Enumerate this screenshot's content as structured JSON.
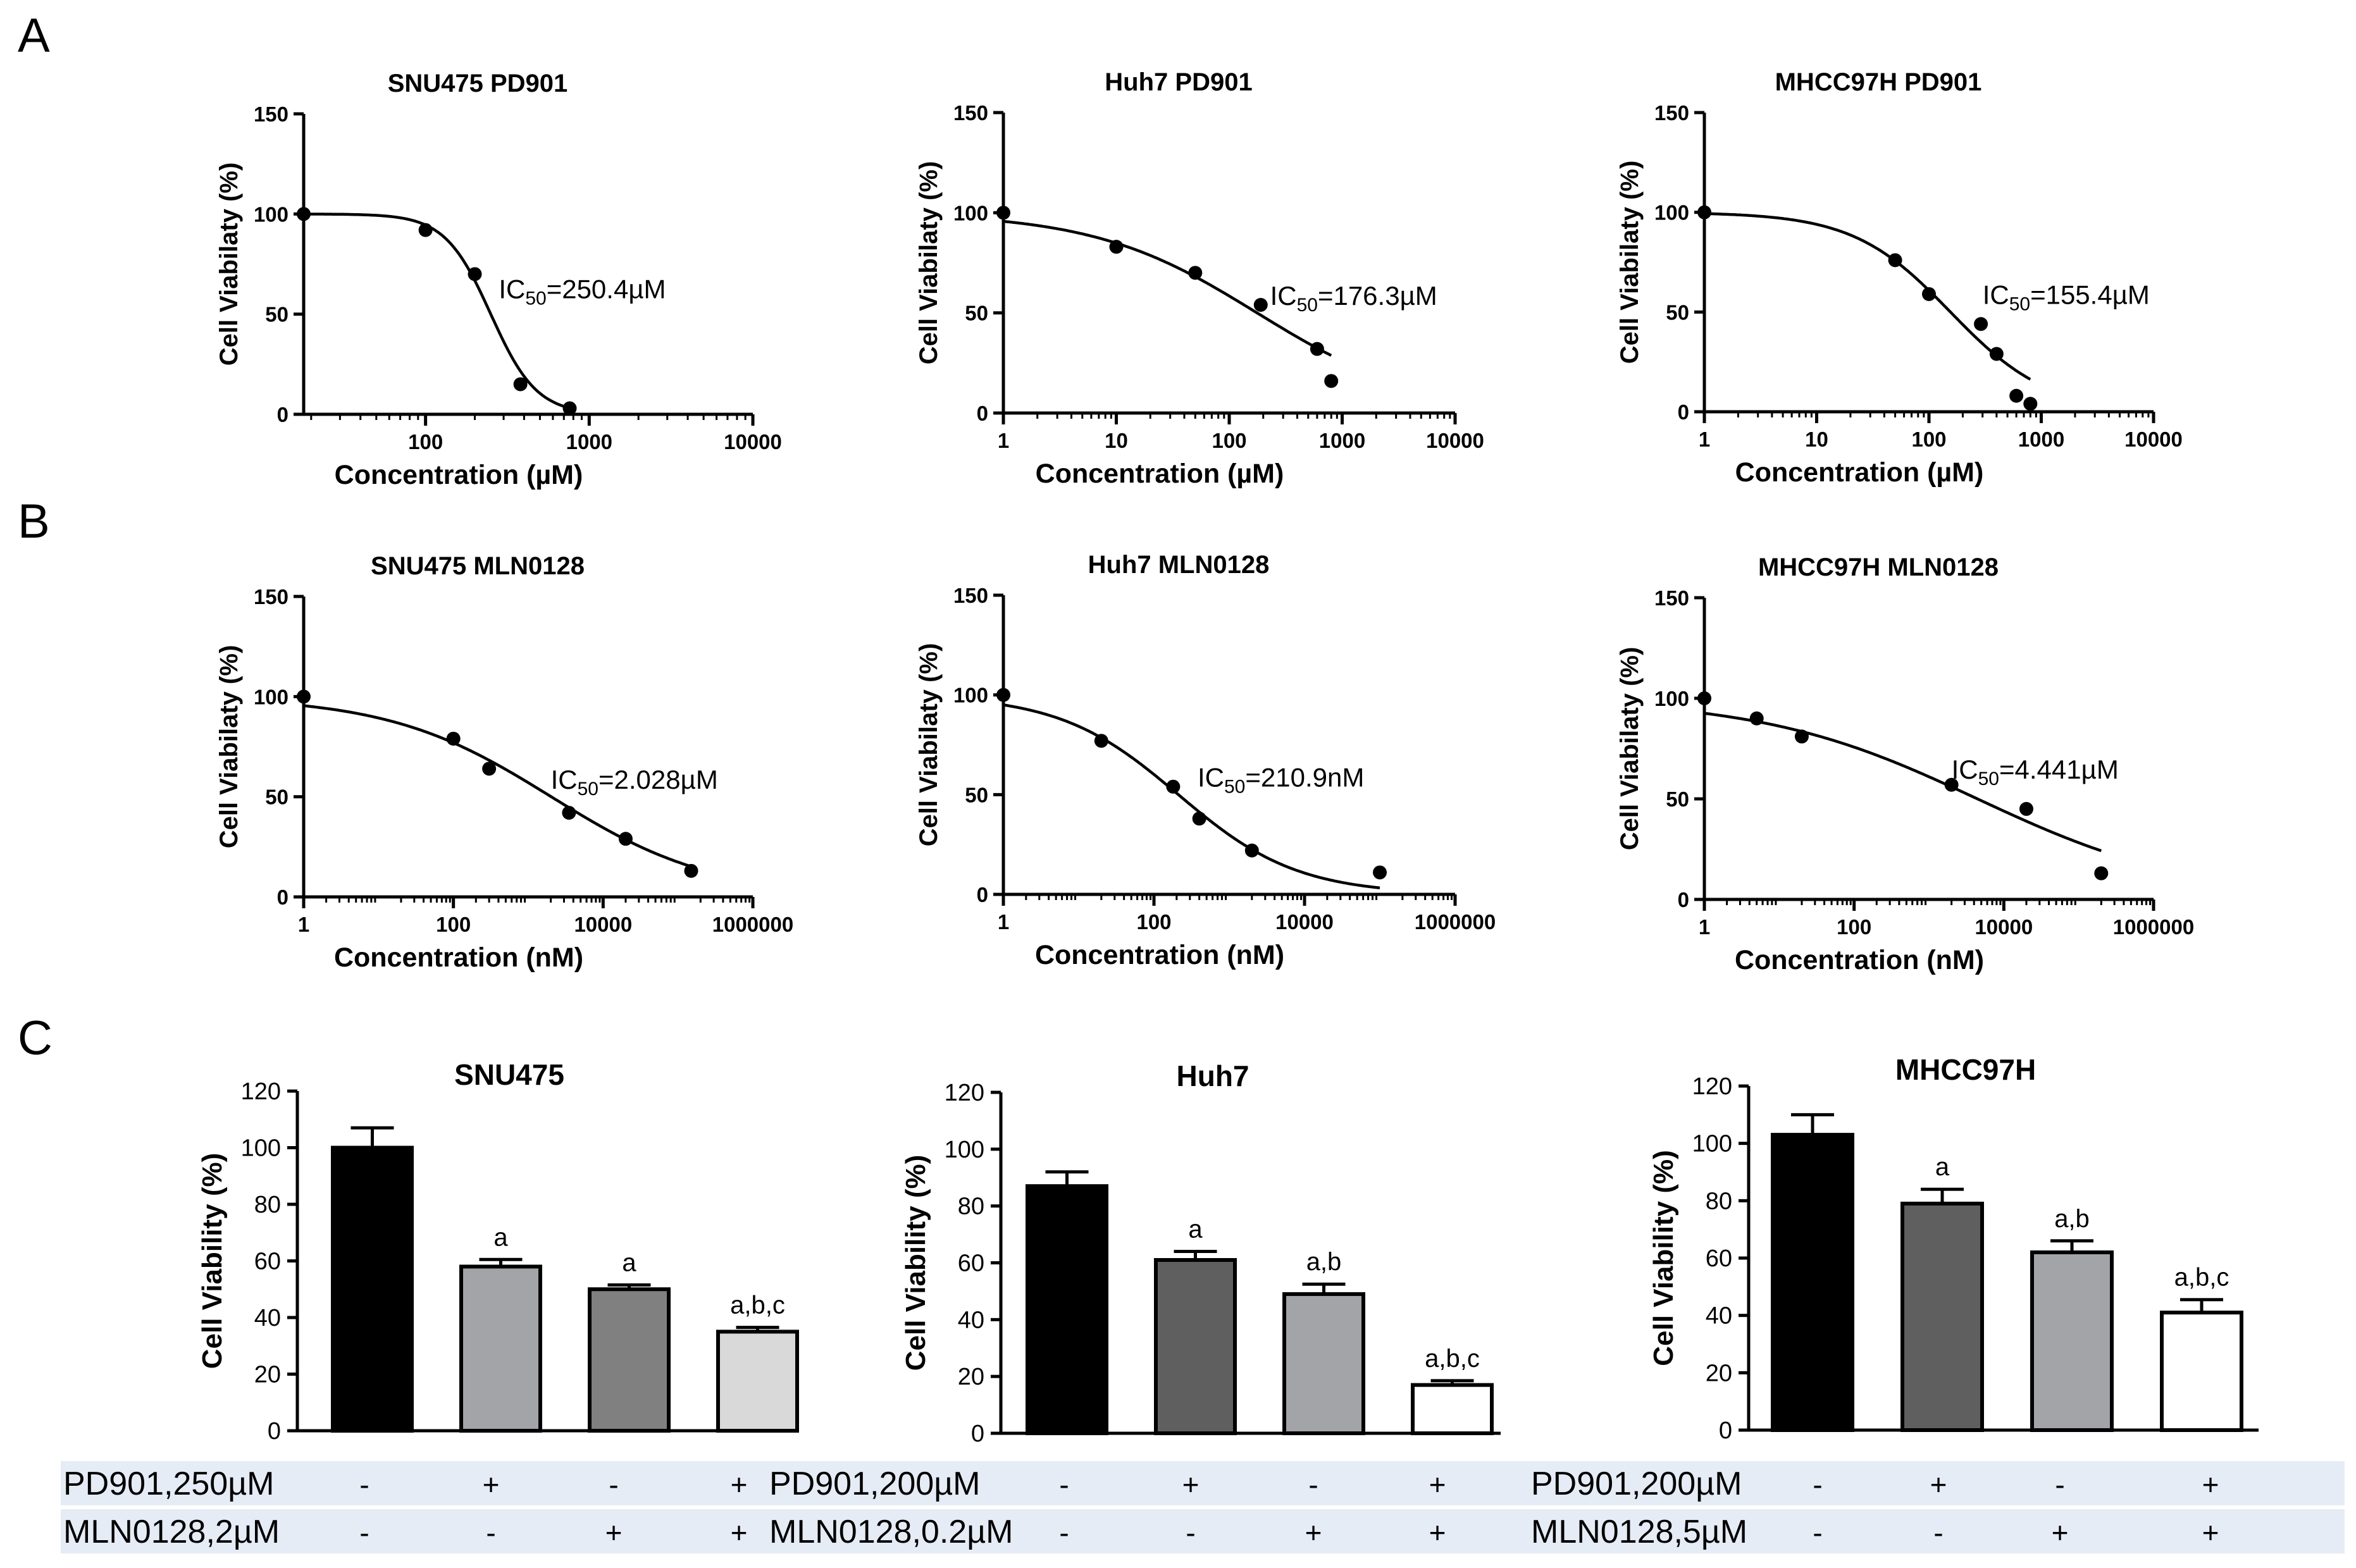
{
  "panels": {
    "A": "A",
    "B": "B",
    "C": "C"
  },
  "chart_data": [
    {
      "id": "a1",
      "type": "scatter",
      "title": "SNU475  PD901",
      "xlabel": "Concentration (µM)",
      "ylabel": "Cell Viabilaty (%)",
      "xscale": "log",
      "xlim": [
        18,
        10000
      ],
      "ylim": [
        0,
        150
      ],
      "yticks": [
        0,
        50,
        100,
        150
      ],
      "xticks": [
        100,
        1000,
        10000
      ],
      "xtick_labels": [
        "100",
        "1000",
        "10000"
      ],
      "ic50": {
        "prefix": "IC",
        "sub": "50",
        "value": "=250.4µM",
        "x": 280,
        "y": 58
      },
      "points": [
        [
          18,
          100
        ],
        [
          100,
          92
        ],
        [
          200,
          70
        ],
        [
          380,
          15
        ],
        [
          760,
          3
        ]
      ],
      "curve": {
        "top": 100,
        "bottom": 0,
        "ic50": 250.4,
        "hill": 3.1
      }
    },
    {
      "id": "a2",
      "type": "scatter",
      "title": "Huh7 PD901",
      "xlabel": "Concentration (µM)",
      "ylabel": "Cell Viabilaty (%)",
      "xscale": "log",
      "xlim": [
        1,
        10000
      ],
      "ylim": [
        0,
        150
      ],
      "yticks": [
        0,
        50,
        100,
        150
      ],
      "xticks": [
        1,
        10,
        100,
        1000,
        10000
      ],
      "xtick_labels": [
        "1",
        "10",
        "100",
        "1000",
        "10000"
      ],
      "ic50": {
        "prefix": "IC",
        "sub": "50",
        "value": "=176.3µM",
        "x": 230,
        "y": 54
      },
      "points": [
        [
          1,
          100
        ],
        [
          10,
          83
        ],
        [
          50,
          70
        ],
        [
          190,
          54
        ],
        [
          600,
          32
        ],
        [
          800,
          16
        ]
      ],
      "curve": {
        "top": 100,
        "bottom": 0,
        "ic50": 176.3,
        "hill": 0.6
      }
    },
    {
      "id": "a3",
      "type": "scatter",
      "title": "MHCC97H  PD901",
      "xlabel": "Concentration (µM)",
      "ylabel": "Cell Viabilaty (%)",
      "xscale": "log",
      "xlim": [
        1,
        10000
      ],
      "ylim": [
        0,
        150
      ],
      "yticks": [
        0,
        50,
        100,
        150
      ],
      "xticks": [
        1,
        10,
        100,
        1000,
        10000
      ],
      "xtick_labels": [
        "1",
        "10",
        "100",
        "1000",
        "10000"
      ],
      "ic50": {
        "prefix": "IC",
        "sub": "50",
        "value": "=155.4µM",
        "x": 300,
        "y": 54
      },
      "points": [
        [
          1,
          100
        ],
        [
          50,
          76
        ],
        [
          100,
          59
        ],
        [
          290,
          44
        ],
        [
          400,
          29
        ],
        [
          600,
          8
        ],
        [
          800,
          4
        ]
      ],
      "curve": {
        "top": 100,
        "bottom": 0,
        "ic50": 155.4,
        "hill": 1.0
      }
    },
    {
      "id": "b1",
      "type": "scatter",
      "title": "SNU475 MLN0128",
      "xlabel": "Concentration (nM)",
      "ylabel": "Cell Viabilaty (%)",
      "xscale": "log",
      "xlim": [
        1,
        1000000
      ],
      "ylim": [
        0,
        150
      ],
      "yticks": [
        0,
        50,
        100,
        150
      ],
      "xticks": [
        1,
        100,
        10000,
        1000000
      ],
      "xtick_labels": [
        "1",
        "100",
        "10000",
        "1000000"
      ],
      "ic50": {
        "prefix": "IC",
        "sub": "50",
        "value": "=2.028µM",
        "x": 2000,
        "y": 54
      },
      "points": [
        [
          1,
          100
        ],
        [
          100,
          79
        ],
        [
          300,
          64
        ],
        [
          3500,
          42
        ],
        [
          20000,
          29
        ],
        [
          150000,
          13
        ]
      ],
      "curve": {
        "top": 100,
        "bottom": 0,
        "ic50": 2028,
        "hill": 0.4
      }
    },
    {
      "id": "b2",
      "type": "scatter",
      "title": "Huh7 MLN0128",
      "xlabel": "Concentration (nM)",
      "ylabel": "Cell Viabilaty (%)",
      "xscale": "log",
      "xlim": [
        1,
        1000000
      ],
      "ylim": [
        0,
        150
      ],
      "yticks": [
        0,
        50,
        100,
        150
      ],
      "xticks": [
        1,
        100,
        10000,
        1000000
      ],
      "xtick_labels": [
        "1",
        "100",
        "10000",
        "1000000"
      ],
      "ic50": {
        "prefix": "IC",
        "sub": "50",
        "value": "=210.9nM",
        "x": 380,
        "y": 54
      },
      "points": [
        [
          1,
          100
        ],
        [
          20,
          77
        ],
        [
          180,
          54
        ],
        [
          400,
          38
        ],
        [
          2000,
          22
        ],
        [
          100000,
          11
        ]
      ],
      "curve": {
        "top": 100,
        "bottom": 0,
        "ic50": 210.9,
        "hill": 0.55
      }
    },
    {
      "id": "b3",
      "type": "scatter",
      "title": "MHCC97H MLN0128",
      "xlabel": "Concentration (nM)",
      "ylabel": "Cell Viabilaty (%)",
      "xscale": "log",
      "xlim": [
        1,
        1000000
      ],
      "ylim": [
        0,
        150
      ],
      "yticks": [
        0,
        50,
        100,
        150
      ],
      "xticks": [
        1,
        100,
        10000,
        1000000
      ],
      "xtick_labels": [
        "1",
        "100",
        "10000",
        "1000000"
      ],
      "ic50": {
        "prefix": "IC",
        "sub": "50",
        "value": "=4.441µM",
        "x": 2000,
        "y": 60
      },
      "points": [
        [
          1,
          100
        ],
        [
          5,
          90
        ],
        [
          20,
          81
        ],
        [
          2000,
          57
        ],
        [
          20000,
          45
        ],
        [
          200000,
          13
        ]
      ],
      "curve": {
        "top": 100,
        "bottom": 0,
        "ic50": 4441,
        "hill": 0.3
      }
    },
    {
      "id": "c1",
      "type": "bar",
      "title": "SNU475",
      "ylabel": "Cell Viability (%)",
      "ylim": [
        0,
        120
      ],
      "yticks": [
        0,
        20,
        40,
        60,
        80,
        100,
        120
      ],
      "values": [
        100,
        58,
        50,
        35
      ],
      "errors": [
        7,
        2.5,
        1.5,
        1.5
      ],
      "labels": [
        "",
        "a",
        "a",
        "a,b,c"
      ],
      "colors": [
        "#000000",
        "#a2a4a8",
        "#808080",
        "#d9d9d9"
      ]
    },
    {
      "id": "c2",
      "type": "bar",
      "title": "Huh7",
      "ylabel": "Cell Viability (%)",
      "ylim": [
        0,
        120
      ],
      "yticks": [
        0,
        20,
        40,
        60,
        80,
        100,
        120
      ],
      "values": [
        87,
        61,
        49,
        17
      ],
      "errors": [
        5,
        3,
        3.5,
        1.5
      ],
      "labels": [
        "",
        "a",
        "a,b",
        "a,b,c"
      ],
      "colors": [
        "#000000",
        "#5f5f5f",
        "#a2a4a8",
        "#ffffff"
      ]
    },
    {
      "id": "c3",
      "type": "bar",
      "title": "MHCC97H",
      "ylabel": "Cell Viability (%)",
      "ylim": [
        0,
        120
      ],
      "yticks": [
        0,
        20,
        40,
        60,
        80,
        100,
        120
      ],
      "values": [
        103,
        79,
        62,
        41
      ],
      "errors": [
        7,
        5,
        4,
        4.5
      ],
      "labels": [
        "",
        "a",
        "a,b",
        "a,b,c"
      ],
      "colors": [
        "#000000",
        "#5f5f5f",
        "#a2a4a8",
        "#ffffff"
      ]
    }
  ],
  "treatment_table": [
    {
      "rows": [
        {
          "label": "PD901,250µM",
          "cells": [
            "-",
            "+",
            "-",
            "+"
          ]
        },
        {
          "label": "MLN0128,2µM",
          "cells": [
            "-",
            "-",
            "+",
            "+"
          ]
        }
      ]
    },
    {
      "rows": [
        {
          "label": "PD901,200µM",
          "cells": [
            "-",
            "+",
            "-",
            "+"
          ]
        },
        {
          "label": "MLN0128,0.2µM",
          "cells": [
            "-",
            "-",
            "+",
            "+"
          ]
        }
      ]
    },
    {
      "rows": [
        {
          "label": "PD901,200µM",
          "cells": [
            "-",
            "+",
            "-",
            "+"
          ]
        },
        {
          "label": "MLN0128,5µM",
          "cells": [
            "-",
            "-",
            "+",
            "+"
          ]
        }
      ]
    }
  ],
  "colors": {
    "table_band": "#e6ecf5",
    "axis": "#000000"
  }
}
